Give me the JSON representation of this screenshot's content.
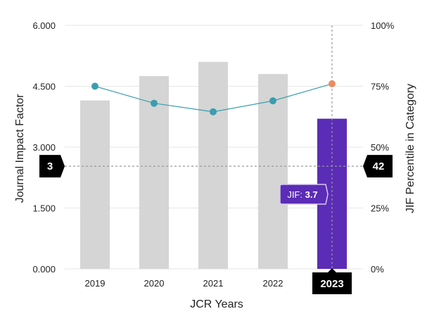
{
  "chart_data": {
    "type": "bar",
    "categories": [
      "2019",
      "2020",
      "2021",
      "2022",
      "2023"
    ],
    "series": [
      {
        "name": "JIF",
        "type": "bar",
        "axis": "left",
        "values": [
          4.15,
          4.75,
          5.1,
          4.8,
          3.7
        ],
        "colors": [
          "#d4d5d4",
          "#d4d5d4",
          "#d4d5d4",
          "#d4d5d4",
          "#5b2cb5"
        ]
      },
      {
        "name": "JIF Percentile in Category",
        "type": "line",
        "axis": "right",
        "values": [
          75,
          68,
          64.5,
          69,
          76
        ],
        "line_color": "#3a9eb0",
        "point_colors": [
          "#3a9eb0",
          "#3a9eb0",
          "#3a9eb0",
          "#3a9eb0",
          "#f48a5c"
        ]
      }
    ],
    "xlabel": "JCR Years",
    "ylabel": "Journal Impact Factor",
    "ylabel_right": "JIF Percentile in Category",
    "ylim": [
      0,
      6
    ],
    "ylim_right": [
      0,
      100
    ],
    "yticks": [
      "0.000",
      "1.500",
      "3.000",
      "4.500",
      "6.000"
    ],
    "yticks_right": [
      "0%",
      "25%",
      "50%",
      "75%",
      "100%"
    ],
    "grid": true,
    "highlight": {
      "category": "2023",
      "left_marker_label": "3",
      "left_marker_value": 2.53,
      "right_marker_label": "42",
      "tooltip_prefix": "JIF: ",
      "tooltip_value": "3.7",
      "tooltip_color": "#5b2cb5"
    }
  }
}
